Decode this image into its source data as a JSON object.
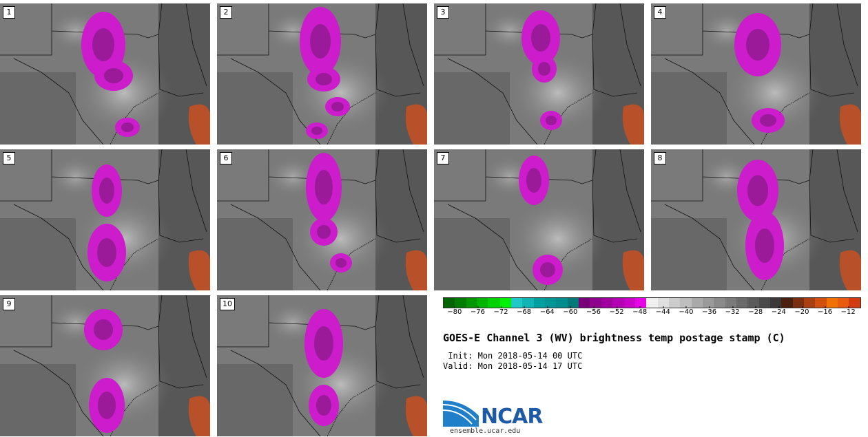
{
  "panels": [
    {
      "label": "1"
    },
    {
      "label": "2"
    },
    {
      "label": "3"
    },
    {
      "label": "4"
    },
    {
      "label": "5"
    },
    {
      "label": "6"
    },
    {
      "label": "7"
    },
    {
      "label": "8"
    },
    {
      "label": "9"
    },
    {
      "label": "10"
    }
  ],
  "colorbar": {
    "colors": [
      "#006400",
      "#007d00",
      "#009600",
      "#00b400",
      "#00d200",
      "#00f000",
      "#20c8c8",
      "#10b4b4",
      "#00a0a0",
      "#009696",
      "#008c8c",
      "#007878",
      "#780078",
      "#8c008c",
      "#a000a0",
      "#b400b4",
      "#c800c8",
      "#e600e6",
      "#f0f0f0",
      "#e0e0e0",
      "#cdcdcd",
      "#bebebe",
      "#aaaaaa",
      "#9a9a9a",
      "#8a8a8a",
      "#7a7a7a",
      "#6a6a6a",
      "#5a5a5a",
      "#4a4a4a",
      "#3a3a3a",
      "#4a2010",
      "#7a3010",
      "#a84012",
      "#d05010",
      "#f07000",
      "#e85a10",
      "#d23c10"
    ],
    "tick_labels": [
      "-80",
      "-76",
      "-72",
      "-68",
      "-64",
      "-60",
      "-56",
      "-52",
      "-48",
      "-44",
      "-40",
      "-36",
      "-32",
      "-28",
      "-24",
      "-20",
      "-16",
      "-12"
    ],
    "min": -82,
    "max": -10
  },
  "title": "GOES-E Channel 3 (WV) brightness temp postage stamp (C)",
  "init": " Init: Mon 2018-05-14 00 UTC",
  "valid": "Valid: Mon 2018-05-14 17 UTC",
  "logo": "NCAR",
  "site": "ensemble.ucar.edu"
}
